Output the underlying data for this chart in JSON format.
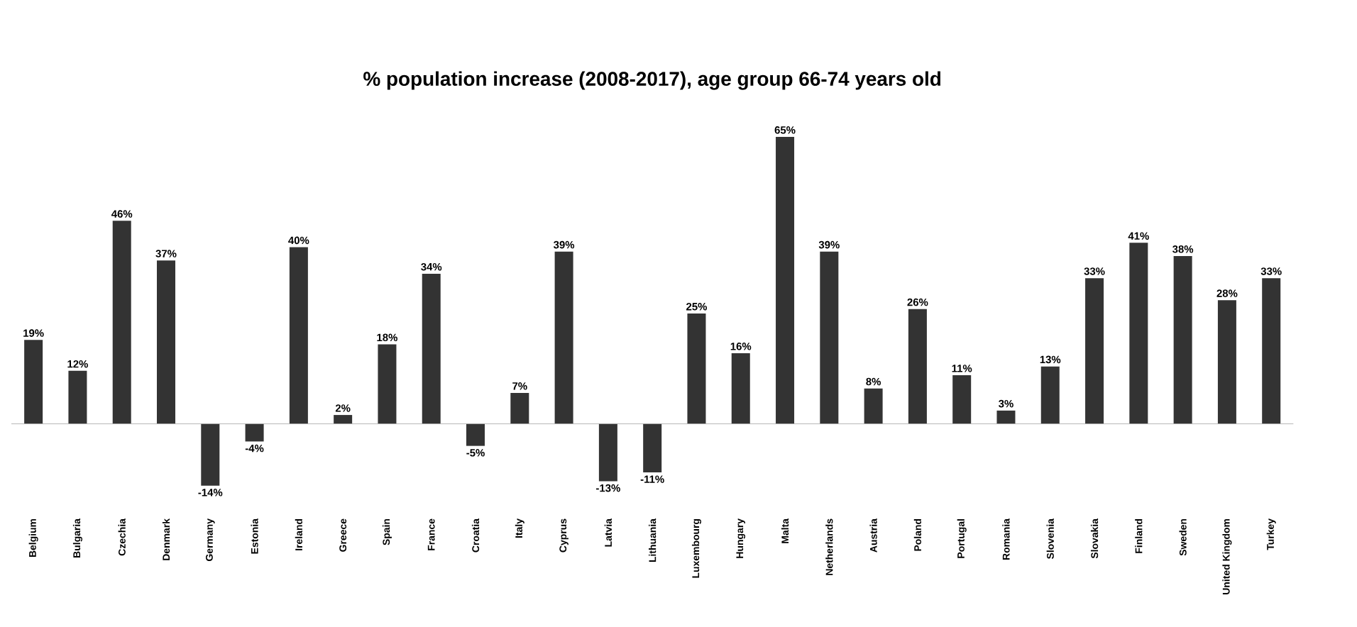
{
  "chart_data": {
    "type": "bar",
    "title": "% population increase (2008-2017), age group 66-74 years old",
    "categories": [
      "Belgium",
      "Bulgaria",
      "Czechia",
      "Denmark",
      "Germany",
      "Estonia",
      "Ireland",
      "Greece",
      "Spain",
      "France",
      "Croatia",
      "Italy",
      "Cyprus",
      "Latvia",
      "Lithuania",
      "Luxembourg",
      "Hungary",
      "Malta",
      "Netherlands",
      "Austria",
      "Poland",
      "Portugal",
      "Romania",
      "Slovenia",
      "Slovakia",
      "Finland",
      "Sweden",
      "United Kingdom",
      "Turkey"
    ],
    "values": [
      19,
      12,
      46,
      37,
      -14,
      -4,
      40,
      2,
      18,
      34,
      -5,
      7,
      39,
      -13,
      -11,
      25,
      16,
      65,
      39,
      8,
      26,
      11,
      3,
      13,
      33,
      41,
      38,
      28,
      33
    ],
    "value_labels": [
      "19%",
      "12%",
      "46%",
      "37%",
      "-14%",
      "-4%",
      "40%",
      "2%",
      "18%",
      "34%",
      "-5%",
      "7%",
      "39%",
      "-13%",
      "-11%",
      "25%",
      "16%",
      "65%",
      "39%",
      "8%",
      "26%",
      "11%",
      "3%",
      "13%",
      "33%",
      "41%",
      "38%",
      "28%",
      "33%"
    ],
    "color": "#333333"
  }
}
